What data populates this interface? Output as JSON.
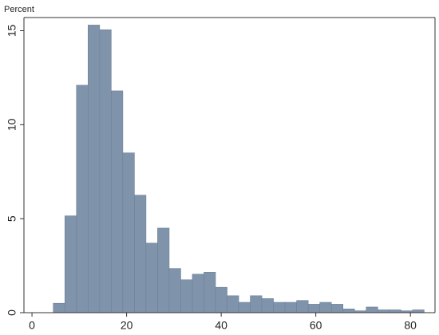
{
  "chart_data": {
    "type": "histogram",
    "y_label": "Percent",
    "bins": [
      4.5,
      6.95,
      9.4,
      11.85,
      14.3,
      16.75,
      19.2,
      21.65,
      24.1,
      26.55,
      29,
      31.45,
      33.9,
      36.35,
      38.8,
      41.25,
      43.7,
      46.15,
      48.6,
      51.05,
      53.5,
      55.95,
      58.4,
      60.85,
      63.3,
      65.75,
      68.2,
      70.65,
      73.1,
      75.55,
      78,
      80.45,
      82.9
    ],
    "values": [
      0.5,
      5.15,
      12.1,
      15.3,
      15.05,
      11.8,
      8.5,
      6.25,
      3.7,
      4.5,
      2.35,
      1.75,
      2.05,
      2.15,
      1.35,
      0.9,
      0.55,
      0.9,
      0.75,
      0.55,
      0.55,
      0.65,
      0.45,
      0.55,
      0.45,
      0.2,
      0.1,
      0.3,
      0.15,
      0.15,
      0.1,
      0.15
    ],
    "color": "#7f93ab",
    "xlim": [
      -1.7,
      85.2
    ],
    "ylim": [
      0,
      15.7
    ],
    "xticks": [
      0,
      20,
      40,
      60,
      80
    ],
    "yticks": [
      0,
      5,
      10,
      15
    ]
  }
}
